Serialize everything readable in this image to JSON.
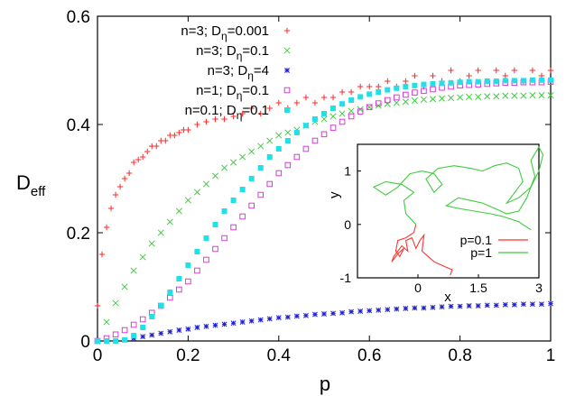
{
  "chart_data": [
    {
      "type": "scatter",
      "xlabel": "p",
      "ylabel_main": "D",
      "ylabel_sub": "eff",
      "xlim": [
        0,
        1
      ],
      "ylim": [
        0,
        0.6
      ],
      "x_ticks": [
        "0",
        "0.2",
        "0.4",
        "0.6",
        "0.8",
        "1"
      ],
      "y_ticks": [
        "0",
        "0.2",
        "0.4",
        "0.6"
      ],
      "grid": false,
      "legend_position": "top-left",
      "series": [
        {
          "name_main": "n=3; D",
          "name_sub": "η",
          "name_tail": "=0.001",
          "marker": "plus",
          "color": "#ff2a2a",
          "x": [
            0.0,
            0.01,
            0.02,
            0.03,
            0.04,
            0.05,
            0.06,
            0.07,
            0.08,
            0.09,
            0.1,
            0.11,
            0.12,
            0.13,
            0.14,
            0.15,
            0.16,
            0.17,
            0.18,
            0.19,
            0.2,
            0.22,
            0.24,
            0.26,
            0.28,
            0.3,
            0.32,
            0.34,
            0.36,
            0.38,
            0.4,
            0.42,
            0.44,
            0.46,
            0.48,
            0.5,
            0.52,
            0.54,
            0.56,
            0.58,
            0.6,
            0.62,
            0.64,
            0.66,
            0.68,
            0.7,
            0.72,
            0.74,
            0.76,
            0.78,
            0.8,
            0.82,
            0.84,
            0.86,
            0.88,
            0.9,
            0.92,
            0.94,
            0.96,
            0.98,
            1.0
          ],
          "values": [
            0.065,
            0.16,
            0.21,
            0.245,
            0.27,
            0.285,
            0.3,
            0.31,
            0.33,
            0.335,
            0.34,
            0.35,
            0.36,
            0.36,
            0.37,
            0.37,
            0.38,
            0.38,
            0.385,
            0.39,
            0.39,
            0.4,
            0.405,
            0.41,
            0.41,
            0.415,
            0.42,
            0.43,
            0.42,
            0.43,
            0.44,
            0.43,
            0.44,
            0.45,
            0.44,
            0.45,
            0.45,
            0.46,
            0.46,
            0.47,
            0.47,
            0.47,
            0.48,
            0.47,
            0.48,
            0.49,
            0.47,
            0.49,
            0.48,
            0.5,
            0.48,
            0.49,
            0.5,
            0.48,
            0.5,
            0.49,
            0.5,
            0.48,
            0.5,
            0.49,
            0.5
          ]
        },
        {
          "name_main": "n=3; D",
          "name_sub": "η",
          "name_tail": "=0.1",
          "marker": "cross",
          "color": "#3fcc3f",
          "x": [
            0.0,
            0.02,
            0.04,
            0.06,
            0.08,
            0.1,
            0.12,
            0.14,
            0.16,
            0.18,
            0.2,
            0.22,
            0.24,
            0.26,
            0.28,
            0.3,
            0.32,
            0.34,
            0.36,
            0.38,
            0.4,
            0.42,
            0.44,
            0.46,
            0.48,
            0.5,
            0.52,
            0.54,
            0.56,
            0.58,
            0.6,
            0.62,
            0.64,
            0.66,
            0.68,
            0.7,
            0.72,
            0.74,
            0.76,
            0.78,
            0.8,
            0.82,
            0.84,
            0.86,
            0.88,
            0.9,
            0.92,
            0.94,
            0.96,
            0.98,
            1.0
          ],
          "values": [
            0.0,
            0.035,
            0.07,
            0.1,
            0.13,
            0.155,
            0.18,
            0.2,
            0.22,
            0.24,
            0.26,
            0.275,
            0.29,
            0.305,
            0.32,
            0.33,
            0.34,
            0.35,
            0.36,
            0.37,
            0.38,
            0.385,
            0.39,
            0.398,
            0.405,
            0.41,
            0.415,
            0.42,
            0.425,
            0.428,
            0.432,
            0.435,
            0.438,
            0.44,
            0.442,
            0.444,
            0.446,
            0.447,
            0.448,
            0.449,
            0.45,
            0.451,
            0.451,
            0.452,
            0.452,
            0.453,
            0.453,
            0.453,
            0.454,
            0.454,
            0.454
          ]
        },
        {
          "name_main": "n=3; D",
          "name_sub": "η",
          "name_tail": "=4",
          "marker": "star",
          "color": "#1f1fd6",
          "x": [
            0.0,
            0.02,
            0.04,
            0.06,
            0.08,
            0.1,
            0.12,
            0.14,
            0.16,
            0.18,
            0.2,
            0.22,
            0.24,
            0.26,
            0.28,
            0.3,
            0.32,
            0.34,
            0.36,
            0.38,
            0.4,
            0.42,
            0.44,
            0.46,
            0.48,
            0.5,
            0.52,
            0.54,
            0.56,
            0.58,
            0.6,
            0.62,
            0.64,
            0.66,
            0.68,
            0.7,
            0.72,
            0.74,
            0.76,
            0.78,
            0.8,
            0.82,
            0.84,
            0.86,
            0.88,
            0.9,
            0.92,
            0.94,
            0.96,
            0.98,
            1.0
          ],
          "values": [
            0.0,
            0.0,
            0.0,
            0.002,
            0.005,
            0.008,
            0.011,
            0.014,
            0.017,
            0.02,
            0.022,
            0.025,
            0.027,
            0.029,
            0.031,
            0.033,
            0.035,
            0.037,
            0.039,
            0.041,
            0.043,
            0.044,
            0.046,
            0.047,
            0.049,
            0.05,
            0.051,
            0.052,
            0.054,
            0.055,
            0.056,
            0.057,
            0.058,
            0.059,
            0.06,
            0.061,
            0.061,
            0.062,
            0.063,
            0.064,
            0.064,
            0.065,
            0.065,
            0.066,
            0.066,
            0.067,
            0.067,
            0.068,
            0.068,
            0.068,
            0.069
          ]
        },
        {
          "name_main": "n=1; D",
          "name_sub": "η",
          "name_tail": "=0.1",
          "marker": "square-open",
          "color": "#d63bd6",
          "x": [
            0.0,
            0.02,
            0.04,
            0.06,
            0.08,
            0.1,
            0.12,
            0.14,
            0.16,
            0.18,
            0.2,
            0.22,
            0.24,
            0.26,
            0.28,
            0.3,
            0.32,
            0.34,
            0.36,
            0.38,
            0.4,
            0.42,
            0.44,
            0.46,
            0.48,
            0.5,
            0.52,
            0.54,
            0.56,
            0.58,
            0.6,
            0.62,
            0.64,
            0.66,
            0.68,
            0.7,
            0.72,
            0.74,
            0.76,
            0.78,
            0.8,
            0.82,
            0.84,
            0.86,
            0.88,
            0.9,
            0.92,
            0.94,
            0.96,
            0.98,
            1.0
          ],
          "values": [
            0.0,
            0.005,
            0.012,
            0.02,
            0.03,
            0.04,
            0.052,
            0.065,
            0.08,
            0.095,
            0.11,
            0.13,
            0.15,
            0.17,
            0.19,
            0.21,
            0.23,
            0.25,
            0.27,
            0.29,
            0.31,
            0.325,
            0.34,
            0.355,
            0.37,
            0.382,
            0.394,
            0.405,
            0.415,
            0.424,
            0.432,
            0.439,
            0.445,
            0.45,
            0.455,
            0.459,
            0.462,
            0.465,
            0.468,
            0.47,
            0.472,
            0.473,
            0.474,
            0.475,
            0.476,
            0.477,
            0.477,
            0.478,
            0.478,
            0.478,
            0.479
          ]
        },
        {
          "name_main": "n=0.1; D",
          "name_sub": "η",
          "name_tail": "=0.1",
          "marker": "square-filled",
          "color": "#22e0e8",
          "x": [
            0.0,
            0.02,
            0.04,
            0.06,
            0.08,
            0.1,
            0.12,
            0.14,
            0.16,
            0.18,
            0.2,
            0.22,
            0.24,
            0.26,
            0.28,
            0.3,
            0.32,
            0.34,
            0.36,
            0.38,
            0.4,
            0.42,
            0.44,
            0.46,
            0.48,
            0.5,
            0.52,
            0.54,
            0.56,
            0.58,
            0.6,
            0.62,
            0.64,
            0.66,
            0.68,
            0.7,
            0.72,
            0.74,
            0.76,
            0.78,
            0.8,
            0.82,
            0.84,
            0.86,
            0.88,
            0.9,
            0.92,
            0.94,
            0.96,
            0.98,
            1.0
          ],
          "values": [
            0.0,
            0.0,
            0.0,
            0.002,
            0.01,
            0.025,
            0.045,
            0.065,
            0.09,
            0.115,
            0.14,
            0.165,
            0.19,
            0.215,
            0.24,
            0.26,
            0.28,
            0.3,
            0.32,
            0.34,
            0.355,
            0.37,
            0.385,
            0.398,
            0.41,
            0.42,
            0.43,
            0.438,
            0.445,
            0.451,
            0.456,
            0.46,
            0.464,
            0.467,
            0.47,
            0.472,
            0.474,
            0.475,
            0.476,
            0.477,
            0.478,
            0.479,
            0.479,
            0.48,
            0.48,
            0.481,
            0.481,
            0.481,
            0.482,
            0.482,
            0.482
          ]
        }
      ]
    },
    {
      "type": "line",
      "xlabel": "x",
      "ylabel": "y",
      "xlim": [
        -1.5,
        3
      ],
      "ylim": [
        -1,
        1.5
      ],
      "x_ticks": [
        "0",
        "1.5",
        "3"
      ],
      "y_ticks": [
        "1",
        "0",
        "-1"
      ],
      "legend_position": "bottom-right",
      "series": [
        {
          "name": "p=0.1",
          "color": "#ff3333",
          "x": [
            -0.05,
            -0.1,
            -0.3,
            -0.5,
            -0.55,
            -0.45,
            -0.35,
            -0.5,
            -0.65,
            -0.6,
            -0.4,
            -0.25,
            -0.3,
            -0.15,
            -0.05,
            0.05,
            0.15,
            0.1,
            0.25,
            0.4,
            0.55,
            0.7,
            0.85,
            0.8
          ],
          "y": [
            0.0,
            -0.15,
            -0.25,
            -0.3,
            -0.5,
            -0.6,
            -0.45,
            -0.55,
            -0.7,
            -0.6,
            -0.4,
            -0.5,
            -0.3,
            -0.25,
            -0.45,
            -0.3,
            -0.2,
            -0.5,
            -0.6,
            -0.7,
            -0.75,
            -0.8,
            -0.85,
            -0.95
          ]
        },
        {
          "name": "p=1",
          "color": "#3fcc3f",
          "x": [
            -0.05,
            -0.3,
            -0.35,
            -0.1,
            -0.4,
            -0.8,
            -1.1,
            -0.8,
            -0.5,
            -0.2,
            0.1,
            0.4,
            0.6,
            0.4,
            0.2,
            0.5,
            0.9,
            1.3,
            1.6,
            1.9,
            2.2,
            2.5,
            2.6,
            2.4,
            2.2,
            2.5,
            2.8,
            3.0,
            3.1,
            3.0,
            2.8,
            2.9,
            2.7,
            2.5,
            2.2,
            1.9,
            1.6,
            1.3,
            1.0,
            0.7,
            1.0,
            1.4,
            1.8,
            2.1,
            2.3,
            2.5,
            2.6,
            2.8
          ],
          "y": [
            0.0,
            0.2,
            0.45,
            0.6,
            0.75,
            0.8,
            0.7,
            0.55,
            0.7,
            0.95,
            1.0,
            0.95,
            0.75,
            0.6,
            0.85,
            1.05,
            1.1,
            1.05,
            1.0,
            1.1,
            1.15,
            1.05,
            0.8,
            0.6,
            0.4,
            0.5,
            0.7,
            1.0,
            1.3,
            1.45,
            1.2,
            0.9,
            0.5,
            0.25,
            0.2,
            0.3,
            0.4,
            0.45,
            0.5,
            0.35,
            0.3,
            0.25,
            0.2,
            0.15,
            0.1,
            0.05,
            0.0,
            -0.1
          ]
        }
      ]
    }
  ]
}
